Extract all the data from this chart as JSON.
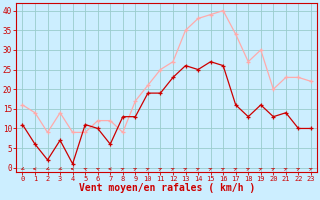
{
  "wind_avg": [
    11,
    6,
    2,
    7,
    1,
    11,
    10,
    6,
    13,
    13,
    19,
    19,
    23,
    26,
    25,
    27,
    26,
    16,
    13,
    16,
    13,
    14,
    10,
    10
  ],
  "wind_gust": [
    16,
    14,
    9,
    14,
    9,
    9,
    12,
    12,
    9,
    17,
    21,
    25,
    27,
    35,
    38,
    39,
    40,
    34,
    27,
    30,
    20,
    23,
    23,
    22
  ],
  "avg_color": "#cc0000",
  "gust_color": "#ffaaaa",
  "bg_color": "#cceeff",
  "grid_color": "#99cccc",
  "xlabel": "Vent moyen/en rafales ( km/h )",
  "xlabel_color": "#cc0000",
  "xlabel_fontsize": 7,
  "tick_color": "#cc0000",
  "yticks": [
    0,
    5,
    10,
    15,
    20,
    25,
    30,
    35,
    40
  ],
  "ylim": [
    -1,
    42
  ],
  "xlim": [
    -0.5,
    23.5
  ],
  "arrow_angles": [
    -135,
    -90,
    -135,
    -135,
    -90,
    -45,
    -45,
    -90,
    45,
    45,
    45,
    45,
    45,
    45,
    45,
    45,
    45,
    45,
    45,
    45,
    45,
    45,
    45,
    45
  ]
}
